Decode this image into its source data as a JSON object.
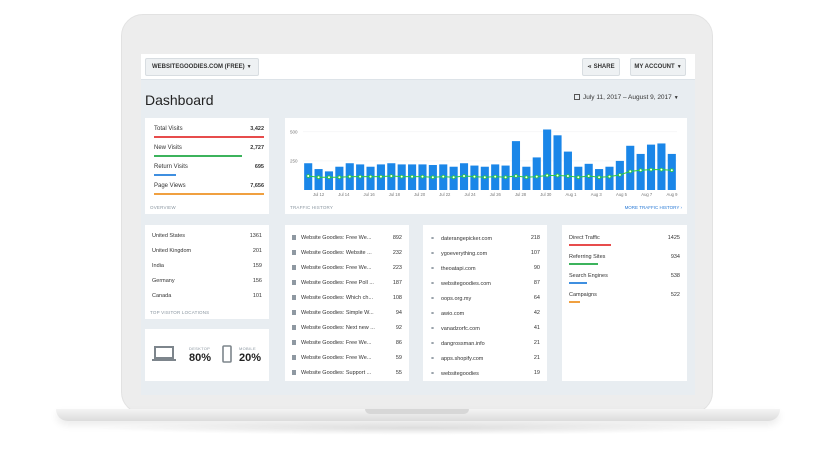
{
  "topbar": {
    "site_label": "WEBSITEGOODIES.COM (FREE)",
    "share_label": "SHARE",
    "account_label": "MY ACCOUNT"
  },
  "page": {
    "title": "Dashboard",
    "date_range": "July 11, 2017 – August 9, 2017"
  },
  "overview": {
    "footer": "OVERVIEW",
    "stats": [
      {
        "label": "Total Visits",
        "value": "3,422",
        "color": "#e74c4c",
        "fill": 1.0
      },
      {
        "label": "New Visits",
        "value": "2,727",
        "color": "#3cb35c",
        "fill": 0.8
      },
      {
        "label": "Return Visits",
        "value": "695",
        "color": "#3f8fe0",
        "fill": 0.2
      },
      {
        "label": "Page Views",
        "value": "7,656",
        "color": "#f0a040",
        "fill": 1.0
      }
    ]
  },
  "traffic": {
    "footer_left": "TRAFFIC HISTORY",
    "footer_right": "MORE TRAFFIC HISTORY ›"
  },
  "chart_data": {
    "type": "bar",
    "title": "",
    "ylim": [
      0,
      550
    ],
    "y_ticks": [
      "500",
      "250"
    ],
    "x_tick_labels": [
      "Jul 12",
      "Jul 14",
      "Jul 16",
      "Jul 18",
      "Jul 20",
      "Jul 22",
      "Jul 24",
      "Jul 26",
      "Jul 28",
      "Jul 30",
      "Aug 1",
      "Aug 3",
      "Aug 5",
      "Aug 7",
      "Aug 9"
    ],
    "series": [
      {
        "type": "bar",
        "color": "#1a86e8",
        "values": [
          230,
          180,
          160,
          200,
          230,
          220,
          200,
          220,
          230,
          220,
          220,
          220,
          215,
          220,
          200,
          230,
          210,
          200,
          220,
          210,
          420,
          200,
          280,
          520,
          470,
          330,
          200,
          225,
          180,
          200,
          250,
          380,
          310,
          390,
          400,
          310
        ]
      },
      {
        "type": "line",
        "color": "#2ecc40",
        "values": [
          120,
          110,
          110,
          110,
          115,
          115,
          115,
          115,
          120,
          115,
          115,
          115,
          110,
          115,
          110,
          120,
          115,
          110,
          115,
          110,
          120,
          110,
          115,
          125,
          125,
          120,
          110,
          120,
          110,
          115,
          130,
          160,
          170,
          175,
          175,
          170
        ]
      }
    ]
  },
  "locations": {
    "footer": "TOP VISITOR LOCATIONS",
    "rows": [
      {
        "name": "United States",
        "value": "1361"
      },
      {
        "name": "United Kingdom",
        "value": "201"
      },
      {
        "name": "India",
        "value": "159"
      },
      {
        "name": "Germany",
        "value": "156"
      },
      {
        "name": "Canada",
        "value": "101"
      }
    ]
  },
  "pages": {
    "rows": [
      {
        "name": "Website Goodies: Free We...",
        "value": "892"
      },
      {
        "name": "Website Goodies: Website ...",
        "value": "232"
      },
      {
        "name": "Website Goodies: Free We...",
        "value": "223"
      },
      {
        "name": "Website Goodies: Free Poll ...",
        "value": "187"
      },
      {
        "name": "Website Goodies: Which ch...",
        "value": "108"
      },
      {
        "name": "Website Goodies: Simple W...",
        "value": "94"
      },
      {
        "name": "Website Goodies: Next new ...",
        "value": "92"
      },
      {
        "name": "Website Goodies: Free We...",
        "value": "86"
      },
      {
        "name": "Website Goodies: Free We...",
        "value": "59"
      },
      {
        "name": "Website Goodies: Support ...",
        "value": "55"
      }
    ]
  },
  "referrers": {
    "rows": [
      {
        "name": "daterangepicker.com",
        "value": "218"
      },
      {
        "name": "ygoeverything.com",
        "value": "107"
      },
      {
        "name": "theoatapi.com",
        "value": "90"
      },
      {
        "name": "websitegoodies.com",
        "value": "87"
      },
      {
        "name": "oops.org.my",
        "value": "64"
      },
      {
        "name": "awio.com",
        "value": "42"
      },
      {
        "name": "vanadzorfc.com",
        "value": "41"
      },
      {
        "name": "dangrossman.info",
        "value": "21"
      },
      {
        "name": "apps.shopify.com",
        "value": "21"
      },
      {
        "name": "websitegoodies",
        "value": "19"
      }
    ]
  },
  "sources": {
    "rows": [
      {
        "name": "Direct Traffic",
        "value": "1425",
        "color": "#e74c4c",
        "fill": 0.38
      },
      {
        "name": "Referring Sites",
        "value": "934",
        "color": "#3cb35c",
        "fill": 0.26
      },
      {
        "name": "Search Engines",
        "value": "538",
        "color": "#3f8fe0",
        "fill": 0.16
      },
      {
        "name": "Campaigns",
        "value": "522",
        "color": "#f0a040",
        "fill": 0.1
      }
    ]
  },
  "devices": {
    "desktop_label": "DESKTOP",
    "desktop_value": "80%",
    "mobile_label": "MOBILE",
    "mobile_value": "20%"
  }
}
